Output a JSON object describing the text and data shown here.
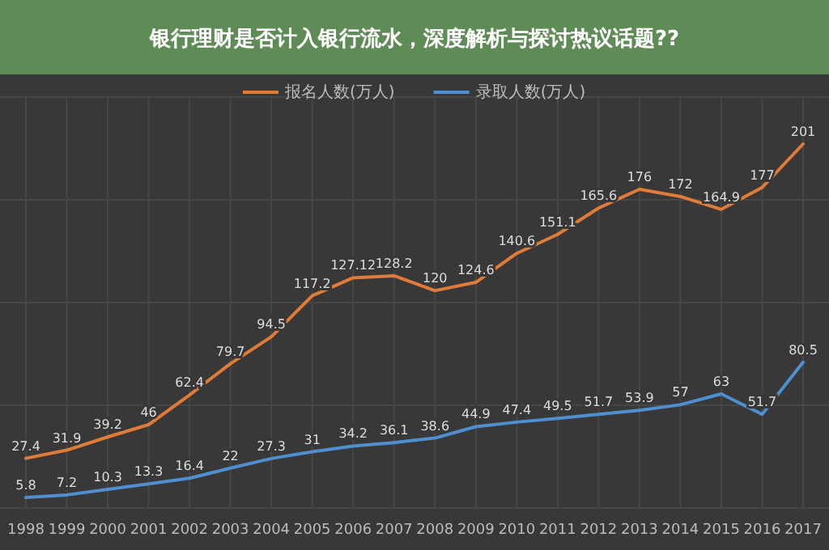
{
  "chart_data": {
    "type": "line",
    "title": "银行理财是否计入银行流水，深度解析与探讨热议话题??",
    "categories": [
      "1998",
      "1999",
      "2000",
      "2001",
      "2002",
      "2003",
      "2004",
      "2005",
      "2006",
      "2007",
      "2008",
      "2009",
      "2010",
      "2011",
      "2012",
      "2013",
      "2014",
      "2015",
      "2016",
      "2017"
    ],
    "series": [
      {
        "name": "报名人数(万人)",
        "color": "#e07b39",
        "values": [
          27.4,
          31.9,
          39.2,
          46,
          62.4,
          79.7,
          94.5,
          117.2,
          127.12,
          128.2,
          120,
          124.6,
          140.6,
          151.1,
          165.6,
          176,
          172,
          164.9,
          177,
          201
        ]
      },
      {
        "name": "录取人数(万人)",
        "color": "#4f8fd0",
        "values": [
          5.8,
          7.2,
          10.3,
          13.3,
          16.4,
          22,
          27.3,
          31,
          34.2,
          36.1,
          38.6,
          44.9,
          47.4,
          49.5,
          51.7,
          53.9,
          57,
          63,
          51.7,
          80.5
        ]
      }
    ],
    "data_labels": true,
    "legend": "top",
    "grid": true,
    "marker": "none"
  }
}
